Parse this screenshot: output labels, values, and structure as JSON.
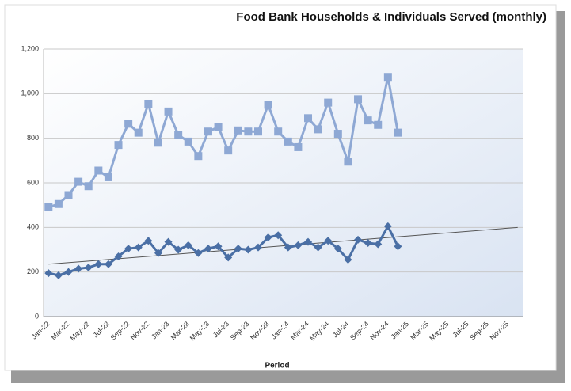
{
  "chart_data": {
    "type": "line",
    "title": "Food Bank Households & Individuals Served (monthly)",
    "x_label": "Period",
    "categories": [
      "Jan-22",
      null,
      "Mar-22",
      null,
      "May-22",
      null,
      "Jul-22",
      null,
      "Sep-22",
      null,
      "Nov-22",
      null,
      "Jan-23",
      null,
      "Mar-23",
      null,
      "May-23",
      null,
      "Jul-23",
      null,
      "Sep-23",
      null,
      "Nov-23",
      null,
      "Jan-24",
      null,
      "Mar-24",
      null,
      "May-24",
      null,
      "Jul-24",
      null,
      "Sep-24",
      null,
      "Nov-24",
      null,
      "Jan-25",
      null,
      "Mar-25",
      null,
      "May-25",
      null,
      "Jul-25",
      null,
      "Sep-25",
      null,
      "Nov-25",
      null
    ],
    "series": [
      {
        "color": "#8ea8d4",
        "marker": "square",
        "values": [
          490,
          505,
          545,
          605,
          585,
          655,
          625,
          770,
          865,
          825,
          955,
          780,
          920,
          815,
          785,
          720,
          830,
          850,
          745,
          835,
          830,
          830,
          950,
          830,
          785,
          760,
          890,
          840,
          960,
          820,
          695,
          975,
          880,
          860,
          1075,
          825,
          null,
          null,
          null,
          null,
          null,
          null,
          null,
          null,
          null,
          null,
          null,
          null
        ]
      },
      {
        "color": "#4a6fa5",
        "marker": "diamond",
        "values": [
          195,
          185,
          200,
          215,
          220,
          235,
          235,
          270,
          305,
          310,
          340,
          285,
          335,
          300,
          320,
          285,
          305,
          315,
          265,
          305,
          300,
          310,
          355,
          365,
          310,
          320,
          335,
          310,
          340,
          305,
          255,
          345,
          330,
          325,
          405,
          315,
          null,
          null,
          null,
          null,
          null,
          null,
          null,
          null,
          null,
          null,
          null,
          null
        ]
      }
    ],
    "trendline": {
      "start": 235,
      "end": 400,
      "color": "#555555"
    },
    "ylim": [
      0,
      1200
    ],
    "yticks": [
      0,
      200,
      400,
      600,
      800,
      {
        "value": 1000,
        "label": "1,000"
      },
      {
        "value": 1200,
        "label": "1,200"
      }
    ],
    "grid": true
  }
}
